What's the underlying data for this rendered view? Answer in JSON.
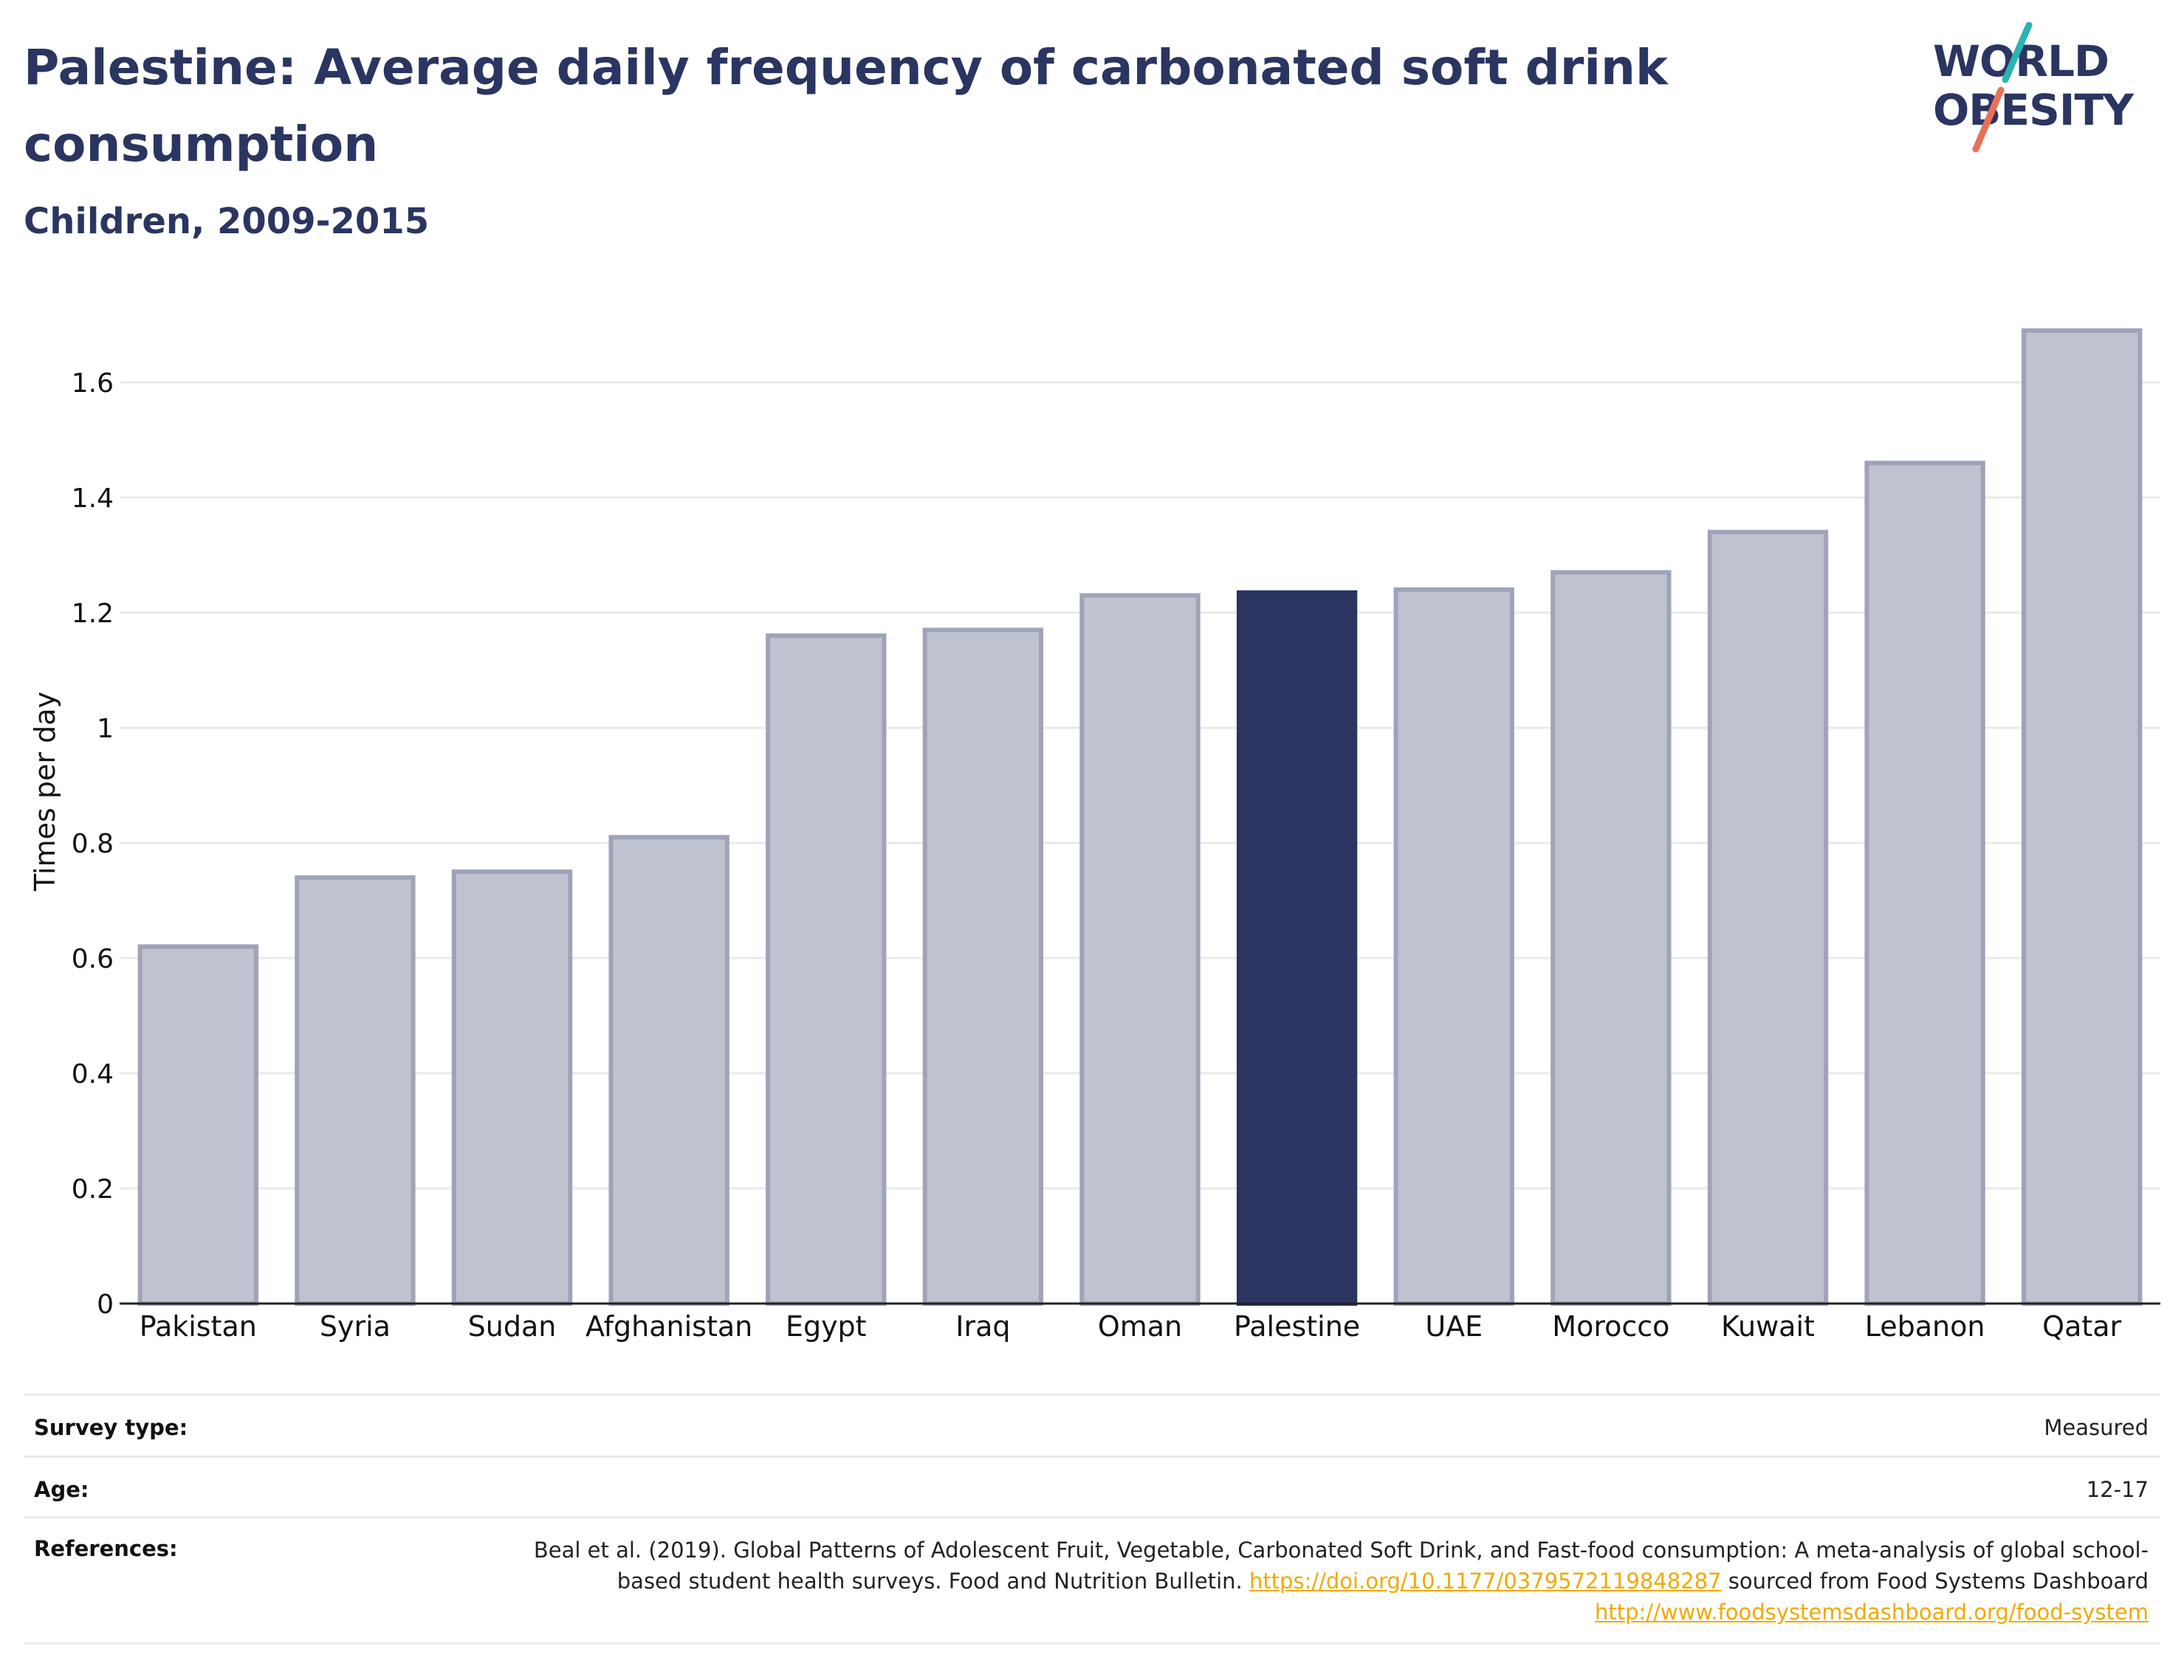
{
  "header": {
    "title": "Palestine: Average daily frequency of carbonated soft drink consumption",
    "subtitle": "Children, 2009-2015"
  },
  "logo": {
    "line1": "WORLD",
    "line2": "OBESITY",
    "colors": {
      "text": "#2a3561",
      "slash_top": "#2bb3b1",
      "slash_bottom": "#e8705a"
    }
  },
  "chart_data": {
    "type": "bar",
    "categories": [
      "Pakistan",
      "Syria",
      "Sudan",
      "Afghanistan",
      "Egypt",
      "Iraq",
      "Oman",
      "Palestine",
      "UAE",
      "Morocco",
      "Kuwait",
      "Lebanon",
      "Qatar"
    ],
    "values": [
      0.62,
      0.74,
      0.75,
      0.81,
      1.16,
      1.17,
      1.23,
      1.235,
      1.24,
      1.27,
      1.34,
      1.46,
      1.69
    ],
    "highlight": "Palestine",
    "ylabel": "Times per day",
    "xlabel": "",
    "ylim": [
      0,
      1.7
    ],
    "yticks": [
      0,
      0.2,
      0.4,
      0.6,
      0.8,
      1,
      1.2,
      1.4,
      1.6
    ],
    "ytick_labels": [
      "0",
      "0.2",
      "0.4",
      "0.6",
      "0.8",
      "1",
      "1.2",
      "1.4",
      "1.6"
    ],
    "grid": true,
    "colors": {
      "bar_fill": "#bfc2cf",
      "bar_stroke": "#9ea3b8",
      "highlight_fill": "#2a3561",
      "grid": "#e8e8ee",
      "axis": "#222222"
    }
  },
  "meta": {
    "survey_type": {
      "label": "Survey type:",
      "value": "Measured"
    },
    "age": {
      "label": "Age:",
      "value": "12-17"
    },
    "references": {
      "label": "References:",
      "text1": "Beal et al. (2019). Global Patterns of Adolescent Fruit, Vegetable, Carbonated Soft Drink, and Fast-food consumption: A meta-analysis of global school-based student health surveys. Food and Nutrition Bulletin. ",
      "link1": "https://doi.org/10.1177/0379572119848287",
      "text2": " sourced from Food Systems Dashboard ",
      "link2": "http://www.foodsystemsdashboard.org/food-system"
    }
  }
}
